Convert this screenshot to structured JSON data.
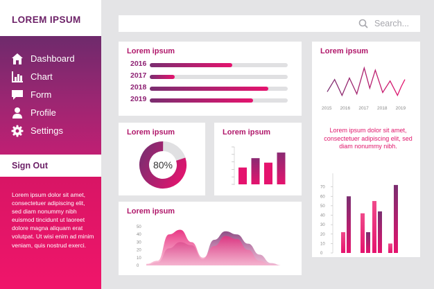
{
  "sidebar": {
    "brand": "LOREM IPSUM",
    "items": [
      {
        "label": "Dashboard",
        "icon": "home-icon"
      },
      {
        "label": "Chart",
        "icon": "chart-icon"
      },
      {
        "label": "Form",
        "icon": "form-icon"
      },
      {
        "label": "Profile",
        "icon": "profile-icon"
      },
      {
        "label": "Settings",
        "icon": "settings-icon"
      }
    ],
    "signout": "Sign Out",
    "description": "Lorem ipsum dolor sit amet, consectetuer adipiscing elit, sed diam nonummy nibh euismod tincidunt ut laoreet dolore magna aliquam erat volutpat. Ut wisi enim ad minim veniam, quis nostrud exerci."
  },
  "search": {
    "placeholder": "Search...",
    "icon": "search-icon"
  },
  "colors": {
    "accent_pink": "#e5136e",
    "accent_purple": "#7a2e70",
    "title_pink": "#b0176a"
  },
  "cards": {
    "years": {
      "title": "Lorem ipsum",
      "rows": [
        {
          "year": "2016",
          "value": 0.6
        },
        {
          "year": "2017",
          "value": 0.18
        },
        {
          "year": "2018",
          "value": 0.86
        },
        {
          "year": "2019",
          "value": 0.75
        }
      ]
    },
    "line": {
      "title": "Lorem ipsum",
      "description": "Lorem ipsum dolor sit amet, consectetuer adipiscing elit, sed diam nonummy nibh."
    },
    "donut": {
      "title": "Lorem ipsum",
      "percent_label": "80%",
      "percent": 80
    },
    "bars": {
      "title": "Lorem ipsum"
    },
    "area": {
      "title": "Lorem ipsum"
    }
  },
  "chart_data": [
    {
      "type": "line",
      "x": [
        2015,
        2015.4,
        2015.8,
        2016.2,
        2016.6,
        2017,
        2017.3,
        2017.6,
        2018,
        2018.4,
        2018.8,
        2019,
        2019.2
      ],
      "xticks": [
        "2015",
        "2016",
        "2017",
        "2018",
        "2019"
      ],
      "values": [
        15,
        32,
        10,
        34,
        12,
        48,
        20,
        45,
        14,
        30,
        10,
        22,
        32
      ],
      "ylim": [
        0,
        50
      ]
    },
    {
      "type": "pie",
      "values": [
        80,
        20
      ],
      "label": "80%"
    },
    {
      "type": "bar",
      "values": [
        45,
        70,
        58,
        85
      ],
      "ylim": [
        0,
        100
      ]
    },
    {
      "type": "area",
      "x": [
        0,
        1,
        2,
        3,
        4,
        5,
        6,
        7,
        8,
        9,
        10,
        11,
        12
      ],
      "yticks": [
        "0",
        "10",
        "20",
        "30",
        "40",
        "50"
      ],
      "series": [
        {
          "values": [
            2,
            6,
            40,
            46,
            30,
            10,
            25,
            38,
            34,
            20,
            6,
            1,
            0
          ]
        },
        {
          "values": [
            1,
            4,
            22,
            30,
            26,
            8,
            33,
            44,
            40,
            28,
            14,
            3,
            0
          ]
        }
      ],
      "ylim": [
        0,
        50
      ]
    },
    {
      "type": "bar",
      "yticks": [
        "0",
        "10",
        "20",
        "30",
        "40",
        "50",
        "60",
        "70"
      ],
      "series": [
        {
          "values": [
            22,
            42,
            55,
            10
          ]
        },
        {
          "values": [
            60,
            22,
            44,
            72
          ]
        }
      ],
      "ylim": [
        0,
        80
      ]
    }
  ]
}
